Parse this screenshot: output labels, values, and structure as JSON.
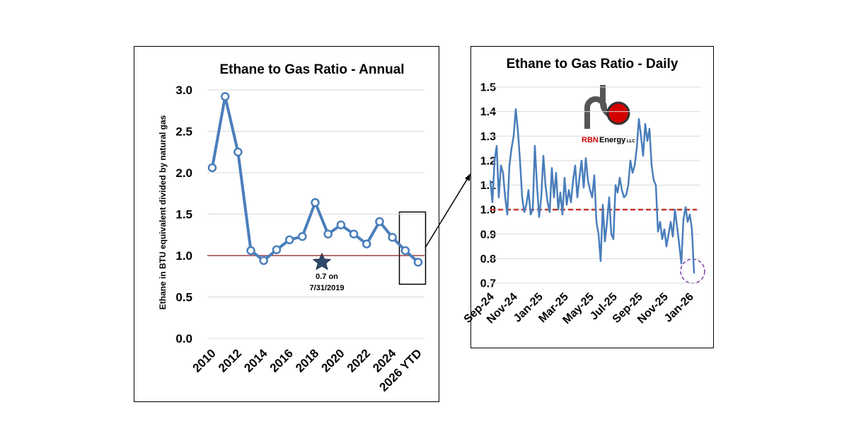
{
  "chart_data": [
    {
      "type": "line",
      "title": "Ethane to Gas Ratio - Annual",
      "y_label": "Ethane in BTU equivalent divided by natural gas",
      "categories": [
        "2010",
        null,
        "2012",
        null,
        "2014",
        null,
        "2016",
        null,
        "2018",
        null,
        "2020",
        null,
        "2022",
        null,
        "2024",
        null,
        "2026 YTD"
      ],
      "series": [
        {
          "name": "Ethane to Gas Ratio",
          "color": "#4a7ebb",
          "values": [
            2.06,
            2.92,
            2.25,
            1.06,
            0.94,
            1.07,
            1.19,
            1.23,
            1.64,
            1.26,
            1.37,
            1.26,
            1.14,
            1.41,
            1.22,
            1.06,
            0.92
          ]
        }
      ],
      "ylim": [
        0,
        3
      ],
      "yticks": [
        {
          "value": 0,
          "label": "0.0"
        },
        0.5,
        {
          "value": 1,
          "label": "1.0"
        },
        1.5,
        {
          "value": 2,
          "label": "2.0"
        },
        2.5,
        {
          "value": 3,
          "label": "3.0"
        }
      ],
      "grid": true,
      "reference_line": 1,
      "reference_color": "#8b1a1a",
      "annotation": [
        "0.7 on",
        "7/31/2019"
      ]
    },
    {
      "type": "line",
      "title": "Ethane to Gas Ratio - Daily",
      "categories": [
        "Sep-24",
        null,
        null,
        null,
        null,
        null,
        null,
        null,
        null,
        null,
        null,
        "Nov-24",
        null,
        null,
        null,
        null,
        null,
        null,
        null,
        null,
        null,
        null,
        null,
        "Jan-25",
        null,
        null,
        null,
        null,
        null,
        null,
        null,
        null,
        null,
        null,
        null,
        "Mar-25",
        null,
        null,
        null,
        null,
        null,
        null,
        null,
        null,
        null,
        null,
        null,
        "May-25",
        null,
        null,
        null,
        null,
        null,
        null,
        null,
        null,
        null,
        null,
        "Jul-25",
        null,
        null,
        null,
        null,
        null,
        null,
        null,
        null,
        null,
        null,
        null,
        "Sep-25",
        null,
        null,
        null,
        null,
        null,
        null,
        null,
        null,
        null,
        null,
        null,
        "Nov-25",
        null,
        null,
        null,
        null,
        null,
        null,
        null,
        null,
        null,
        null,
        null,
        "Jan-26",
        null,
        null
      ],
      "series": [
        {
          "name": "Ethane to Gas Ratio",
          "color": "#4a7ebb",
          "values": [
            1.12,
            1.03,
            1.2,
            1.26,
            1.05,
            1.18,
            1.15,
            1.05,
            0.98,
            1.18,
            1.25,
            1.3,
            1.41,
            1.32,
            1.2,
            1.05,
            0.99,
            1.02,
            1.08,
            0.98,
            1.0,
            1.26,
            1.1,
            0.97,
            1.05,
            1.22,
            1.1,
            1.03,
            0.99,
            1.17,
            1.05,
            1.15,
            1.0,
            1.07,
            0.98,
            1.13,
            1.02,
            1.08,
            1.03,
            1.12,
            1.18,
            1.05,
            1.13,
            1.2,
            1.09,
            1.21,
            1.12,
            1.08,
            1.05,
            1.14,
            0.95,
            0.9,
            0.79,
            1.02,
            0.87,
            0.95,
            1.05,
            0.9,
            0.88,
            1.1,
            1.07,
            1.13,
            1.08,
            1.05,
            1.06,
            1.1,
            1.2,
            1.15,
            1.18,
            1.25,
            1.37,
            1.3,
            1.22,
            1.35,
            1.28,
            1.33,
            1.18,
            1.12,
            1.1,
            0.91,
            0.95,
            0.88,
            0.92,
            0.85,
            0.9,
            0.95,
            0.89,
            1.0,
            0.93,
            0.86,
            0.78,
            0.96,
            1.01,
            0.95,
            0.98,
            0.92,
            0.74
          ]
        }
      ],
      "ylim": [
        0.7,
        1.5
      ],
      "yticks": [
        0.7,
        0.8,
        0.9,
        {
          "value": 1,
          "label": "1.0"
        },
        1.1,
        1.2,
        1.3,
        1.4,
        1.5
      ],
      "grid": true,
      "reference_line": 1,
      "reference_color": "#c0392b"
    }
  ],
  "logo": {
    "brand": "RBN",
    "name": "Energy",
    "suffix": "LLC"
  }
}
